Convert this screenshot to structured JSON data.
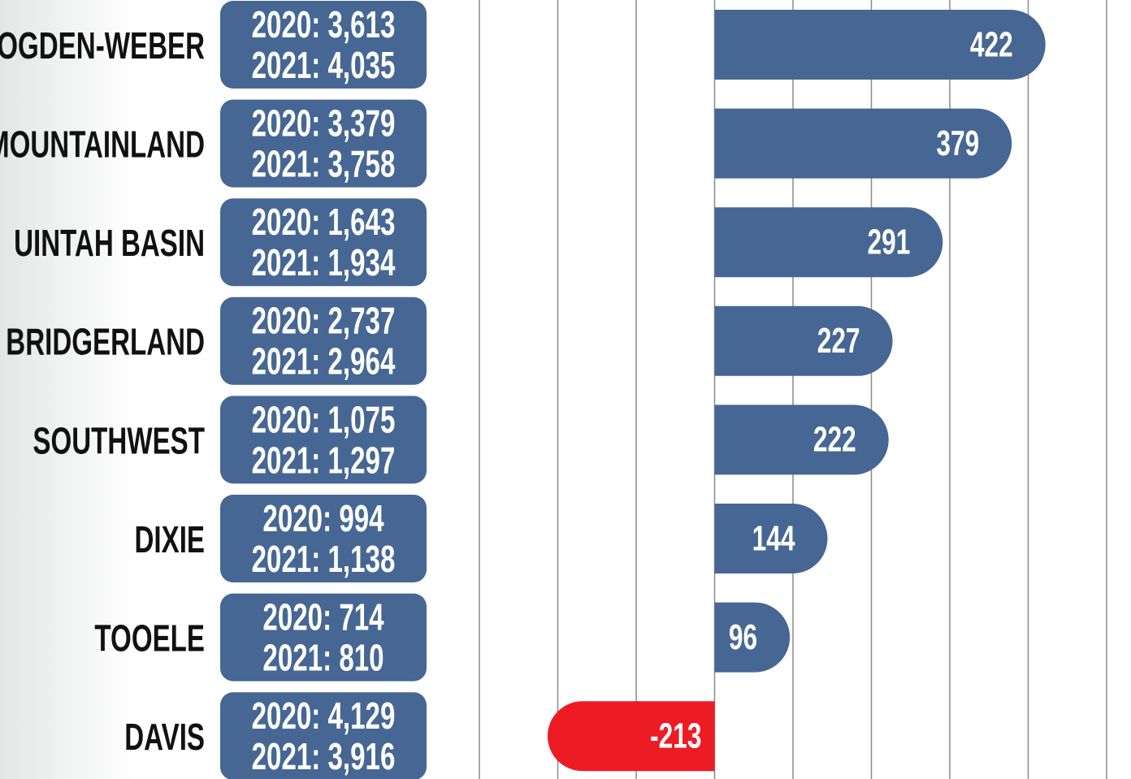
{
  "chart_data": {
    "type": "bar",
    "orientation": "horizontal",
    "categories": [
      "OGDEN-WEBER",
      "MOUNTAINLAND",
      "UINTAH BASIN",
      "BRIDGERLAND",
      "SOUTHWEST",
      "DIXIE",
      "TOOELE",
      "DAVIS"
    ],
    "details": [
      [
        "2020: 3,613",
        "2021: 4,035"
      ],
      [
        "2020: 3,379",
        "2021: 3,758"
      ],
      [
        "2020: 1,643",
        "2021: 1,934"
      ],
      [
        "2020: 2,737",
        "2021: 2,964"
      ],
      [
        "2020: 1,075",
        "2021: 1,297"
      ],
      [
        "2020: 994",
        "2021: 1,138"
      ],
      [
        "2020: 714",
        "2021: 810"
      ],
      [
        "2020: 4,129",
        "2021: 3,916"
      ]
    ],
    "values": [
      422,
      379,
      291,
      227,
      222,
      144,
      96,
      -213
    ],
    "color": "#466793",
    "negative_color": "#ed1c24",
    "xlim": [
      -300,
      500
    ],
    "xticks": [
      -300,
      -200,
      -100,
      0,
      100,
      200,
      300,
      400,
      500
    ],
    "grid": true
  }
}
